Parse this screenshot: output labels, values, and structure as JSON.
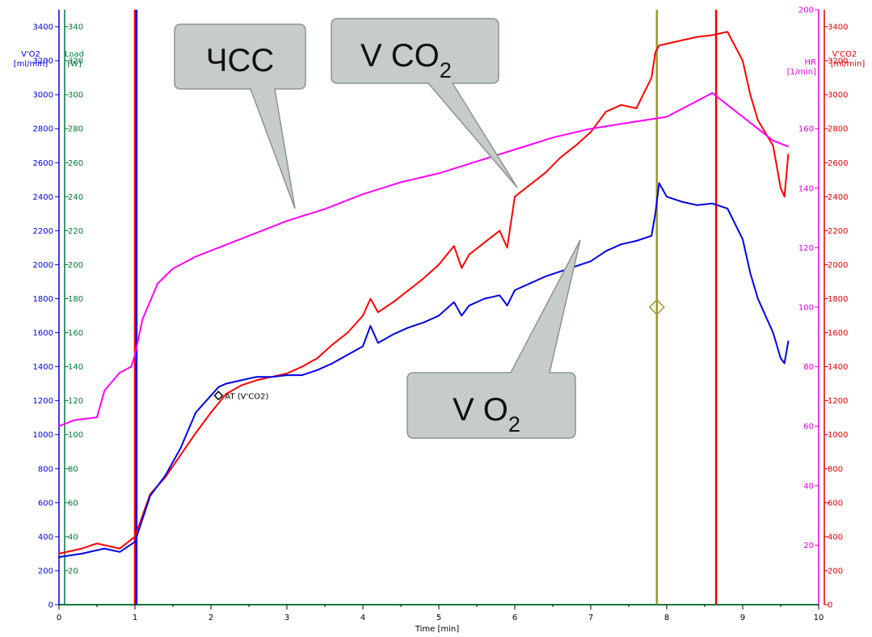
{
  "chart_data": {
    "type": "line",
    "x_axis": {
      "label": "Time  [min]",
      "range": [
        0,
        10
      ],
      "ticks": [
        0,
        1,
        2,
        3,
        4,
        5,
        6,
        7,
        8,
        9,
        10
      ]
    },
    "left_axes": {
      "vo2": {
        "label_line1": "V'O2",
        "label_line2": "[ml/min]",
        "color": "#0000e0",
        "range": [
          0,
          3500
        ],
        "ticks": [
          0,
          200,
          400,
          600,
          800,
          1000,
          1200,
          1400,
          1600,
          1800,
          2000,
          2200,
          2400,
          2600,
          2800,
          3000,
          3200,
          3400
        ]
      },
      "load": {
        "label_line1": "Load",
        "label_line2": "[W]",
        "color": "#007a3a",
        "range": [
          0,
          350
        ],
        "ticks": [
          20,
          40,
          60,
          80,
          100,
          120,
          140,
          160,
          180,
          200,
          220,
          240,
          260,
          280,
          300,
          320,
          340
        ]
      }
    },
    "right_axes": {
      "hr": {
        "label_line1": "HR",
        "label_line2": "[1/min]",
        "color": "#e000e0",
        "range": [
          0,
          200
        ],
        "ticks": [
          20,
          40,
          60,
          80,
          100,
          120,
          140,
          160,
          200
        ]
      },
      "vco2": {
        "label_line1": "V'CO2",
        "label_line2": "[ml/min]",
        "color": "#e00000",
        "range": [
          0,
          3500
        ],
        "ticks": [
          0,
          200,
          400,
          600,
          800,
          1000,
          1200,
          1400,
          1600,
          1800,
          2000,
          2200,
          2400,
          2600,
          2800,
          3000,
          3200,
          3400
        ]
      }
    },
    "series": [
      {
        "name": "V'CO2",
        "color": "#ff0000",
        "axis": "vco2",
        "x": [
          0,
          0.3,
          0.5,
          0.8,
          1.0,
          1.2,
          1.4,
          1.6,
          1.8,
          2.0,
          2.2,
          2.4,
          2.6,
          2.8,
          3.0,
          3.2,
          3.4,
          3.6,
          3.8,
          4.0,
          4.1,
          4.2,
          4.4,
          4.6,
          4.8,
          5.0,
          5.2,
          5.3,
          5.4,
          5.6,
          5.8,
          5.9,
          6.0,
          6.2,
          6.4,
          6.6,
          6.8,
          7.0,
          7.2,
          7.4,
          7.6,
          7.8,
          7.85,
          7.9,
          8.0,
          8.2,
          8.4,
          8.6,
          8.8,
          9.0,
          9.1,
          9.2,
          9.4,
          9.5,
          9.55,
          9.6
        ],
        "values": [
          300,
          330,
          360,
          330,
          400,
          650,
          750,
          880,
          1010,
          1130,
          1240,
          1290,
          1320,
          1340,
          1360,
          1400,
          1450,
          1530,
          1600,
          1700,
          1800,
          1720,
          1780,
          1850,
          1920,
          2000,
          2110,
          1980,
          2060,
          2130,
          2200,
          2100,
          2400,
          2470,
          2540,
          2630,
          2700,
          2780,
          2900,
          2940,
          2920,
          3100,
          3250,
          3290,
          3300,
          3320,
          3340,
          3350,
          3370,
          3200,
          3000,
          2850,
          2700,
          2450,
          2400,
          2650
        ]
      },
      {
        "name": "V'O2",
        "color": "#0000e0",
        "axis": "vo2",
        "x": [
          0,
          0.3,
          0.6,
          0.8,
          1.0,
          1.2,
          1.4,
          1.6,
          1.8,
          2.0,
          2.1,
          2.2,
          2.4,
          2.6,
          2.8,
          3.0,
          3.2,
          3.4,
          3.6,
          3.8,
          4.0,
          4.1,
          4.2,
          4.4,
          4.6,
          4.8,
          5.0,
          5.2,
          5.3,
          5.4,
          5.6,
          5.8,
          5.9,
          6.0,
          6.2,
          6.4,
          6.6,
          6.8,
          7.0,
          7.2,
          7.4,
          7.6,
          7.8,
          7.85,
          7.9,
          8.0,
          8.2,
          8.4,
          8.6,
          8.8,
          9.0,
          9.1,
          9.2,
          9.4,
          9.5,
          9.55,
          9.6
        ],
        "values": [
          280,
          300,
          330,
          310,
          370,
          640,
          760,
          920,
          1130,
          1230,
          1280,
          1300,
          1320,
          1340,
          1340,
          1350,
          1350,
          1380,
          1420,
          1470,
          1520,
          1640,
          1540,
          1590,
          1630,
          1660,
          1700,
          1780,
          1700,
          1760,
          1800,
          1820,
          1760,
          1850,
          1890,
          1930,
          1960,
          1990,
          2020,
          2080,
          2120,
          2140,
          2170,
          2300,
          2480,
          2400,
          2370,
          2350,
          2360,
          2330,
          2150,
          1950,
          1800,
          1600,
          1450,
          1420,
          1550
        ]
      },
      {
        "name": "HR",
        "color": "#ff00ff",
        "axis": "hr",
        "x": [
          0,
          0.2,
          0.5,
          0.6,
          0.8,
          0.95,
          1.0,
          1.1,
          1.3,
          1.5,
          1.8,
          2.0,
          2.5,
          3.0,
          3.5,
          4.0,
          4.5,
          5.0,
          5.5,
          6.0,
          6.5,
          7.0,
          7.5,
          8.0,
          8.3,
          8.6,
          8.8,
          9.0,
          9.2,
          9.4,
          9.6
        ],
        "values": [
          60,
          62,
          63,
          72,
          78,
          80,
          84,
          96,
          108,
          113,
          117,
          119,
          124,
          129,
          133,
          138,
          142,
          145,
          149,
          153,
          157,
          160,
          162,
          164,
          168,
          172,
          168,
          164,
          160,
          156,
          154
        ]
      }
    ],
    "vertical_lines": [
      {
        "x": 1.0,
        "color": "#ff0000"
      },
      {
        "x": 1.02,
        "color": "#0000ff"
      },
      {
        "x": 7.87,
        "color": "#9a9a20"
      },
      {
        "x": 8.65,
        "color": "#ee0000"
      }
    ],
    "markers": [
      {
        "label": "AT (V'CO2)",
        "x": 2.1,
        "y": 1230,
        "axis": "vo2",
        "color": "#000000"
      },
      {
        "label": "",
        "x": 7.87,
        "y": 1750,
        "axis": "vo2",
        "color": "#9a9a20"
      }
    ],
    "callouts": [
      {
        "name": "hr-callout",
        "text": "ЧСС",
        "sub": ""
      },
      {
        "name": "vco2-callout",
        "text": "V CO",
        "sub": "2"
      },
      {
        "name": "vo2-callout",
        "text": "V O",
        "sub": "2"
      }
    ],
    "grid": false
  }
}
